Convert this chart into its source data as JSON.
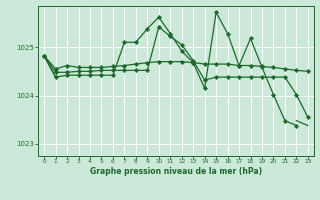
{
  "bg_color": "#cce8d8",
  "grid_color": "#ffffff",
  "line_color": "#1a6b2a",
  "marker_color": "#1a6b2a",
  "xlabel": "Graphe pression niveau de la mer (hPa)",
  "xlabel_color": "#1a6b2a",
  "tick_color": "#1a6b2a",
  "xlim": [
    -0.5,
    23.5
  ],
  "ylim": [
    1022.75,
    1025.85
  ],
  "yticks": [
    1023,
    1024,
    1025
  ],
  "xticks": [
    0,
    1,
    2,
    3,
    4,
    5,
    6,
    7,
    8,
    9,
    10,
    11,
    12,
    13,
    14,
    15,
    16,
    17,
    18,
    19,
    20,
    21,
    22,
    23
  ],
  "series": [
    [
      1024.82,
      1024.55,
      1024.62,
      1024.58,
      1024.58,
      1024.58,
      1024.6,
      1024.62,
      1024.65,
      1024.68,
      1024.7,
      1024.7,
      1024.7,
      1024.68,
      1024.65,
      1024.65,
      1024.65,
      1024.62,
      1024.62,
      1024.6,
      1024.58,
      1024.55,
      1024.52,
      1024.5
    ],
    [
      1024.82,
      1024.48,
      1024.48,
      1024.5,
      1024.5,
      1024.52,
      1024.52,
      1024.52,
      1024.52,
      1024.52,
      1025.42,
      1025.22,
      1025.05,
      1024.72,
      1024.32,
      1024.38,
      1024.38,
      1024.38,
      1024.38,
      1024.38,
      1024.38,
      1024.38,
      1024.02,
      1023.55
    ],
    [
      1024.82,
      1024.38,
      1024.42,
      1024.42,
      1024.42,
      1024.42,
      1024.42,
      1025.1,
      1025.1,
      1025.38,
      1025.62,
      1025.28,
      1024.92,
      1024.68,
      1024.15,
      1025.72,
      1025.28,
      1024.62,
      1025.18,
      1024.58,
      1024.02,
      1023.48,
      1023.38,
      null
    ],
    [
      1024.82,
      1024.38,
      null,
      null,
      null,
      null,
      null,
      null,
      null,
      null,
      null,
      null,
      null,
      null,
      null,
      null,
      null,
      null,
      null,
      null,
      null,
      null,
      1023.48,
      1023.38
    ]
  ],
  "series_styles": [
    {
      "lw": 0.9,
      "ms": 2.2,
      "has_markers": true
    },
    {
      "lw": 0.9,
      "ms": 2.2,
      "has_markers": true
    },
    {
      "lw": 0.9,
      "ms": 2.2,
      "has_markers": true
    },
    {
      "lw": 0.9,
      "ms": 0,
      "has_markers": false
    }
  ]
}
